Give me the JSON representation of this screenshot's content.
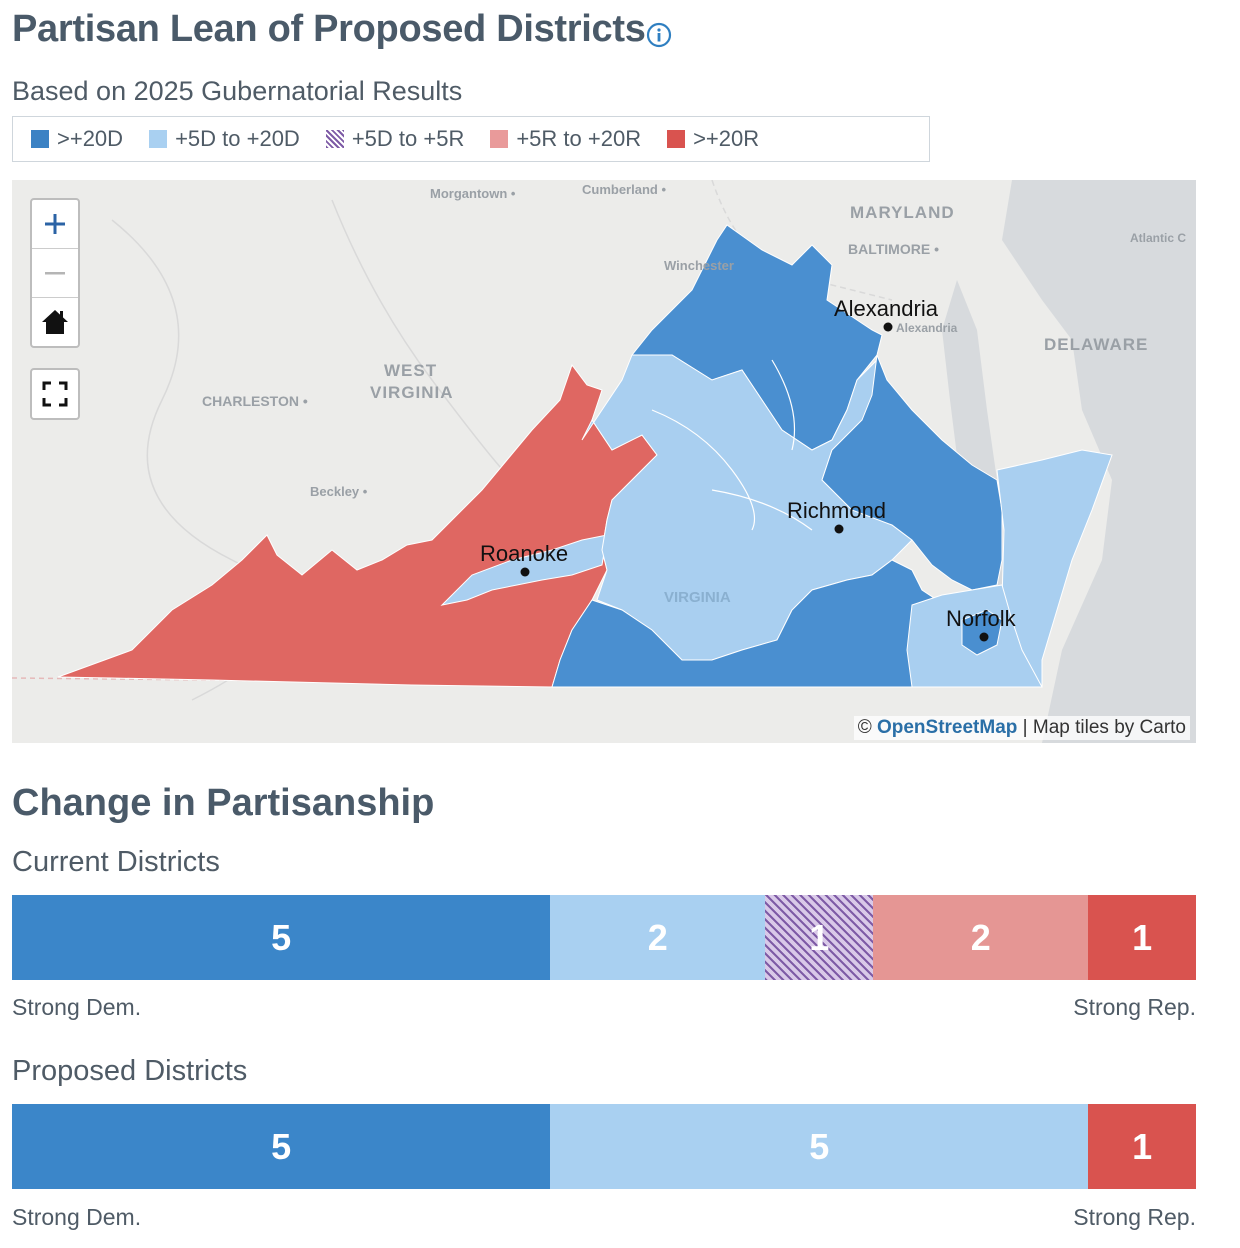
{
  "header": {
    "title": "Partisan Lean of Proposed Districts",
    "subtitle": "Based on 2025 Gubernatorial Results"
  },
  "legend": [
    {
      "label": ">+20D",
      "color": "#3b82c4",
      "pattern": "solid"
    },
    {
      "label": "+5D to +20D",
      "color": "#a9d0f1",
      "pattern": "solid"
    },
    {
      "label": "+5D to +5R",
      "color": "#7e5ba6",
      "pattern": "hatch"
    },
    {
      "label": "+5R to +20R",
      "color": "#e99a9a",
      "pattern": "solid"
    },
    {
      "label": ">+20R",
      "color": "#d9534f",
      "pattern": "solid"
    }
  ],
  "map": {
    "state_labels": [
      "MARYLAND",
      "WEST\nVIRGINIA",
      "DELAWARE"
    ],
    "basemap_labels": [
      "Morgantown",
      "Cumberland",
      "BALTIMORE",
      "Winchester",
      "CHARLESTON",
      "Beckley",
      "Atlantic C",
      "Alexandria",
      "VIRGINIA"
    ],
    "cities": [
      "Alexandria",
      "Richmond",
      "Roanoke",
      "Norfolk"
    ],
    "controls": {
      "zoom_in": "+",
      "zoom_out": "−"
    },
    "attribution": {
      "prefix": "© ",
      "link": "OpenStreetMap",
      "suffix": " | Map tiles by Carto"
    },
    "district_colors": {
      "strong_dem": "#4a8fd0",
      "lean_dem": "#a9cff0",
      "strong_rep": "#df6762"
    }
  },
  "change": {
    "title": "Change in Partisanship",
    "left_label": "Strong Dem.",
    "right_label": "Strong Rep.",
    "current": {
      "label": "Current Districts",
      "segments": [
        {
          "category": ">+20D",
          "count": 5
        },
        {
          "category": "+5D to +20D",
          "count": 2
        },
        {
          "category": "+5D to +5R",
          "count": 1
        },
        {
          "category": "+5R to +20R",
          "count": 2
        },
        {
          "category": ">+20R",
          "count": 1
        }
      ]
    },
    "proposed": {
      "label": "Proposed Districts",
      "segments": [
        {
          "category": ">+20D",
          "count": 5
        },
        {
          "category": "+5D to +20D",
          "count": 5
        },
        {
          "category": ">+20R",
          "count": 1
        }
      ]
    }
  }
}
